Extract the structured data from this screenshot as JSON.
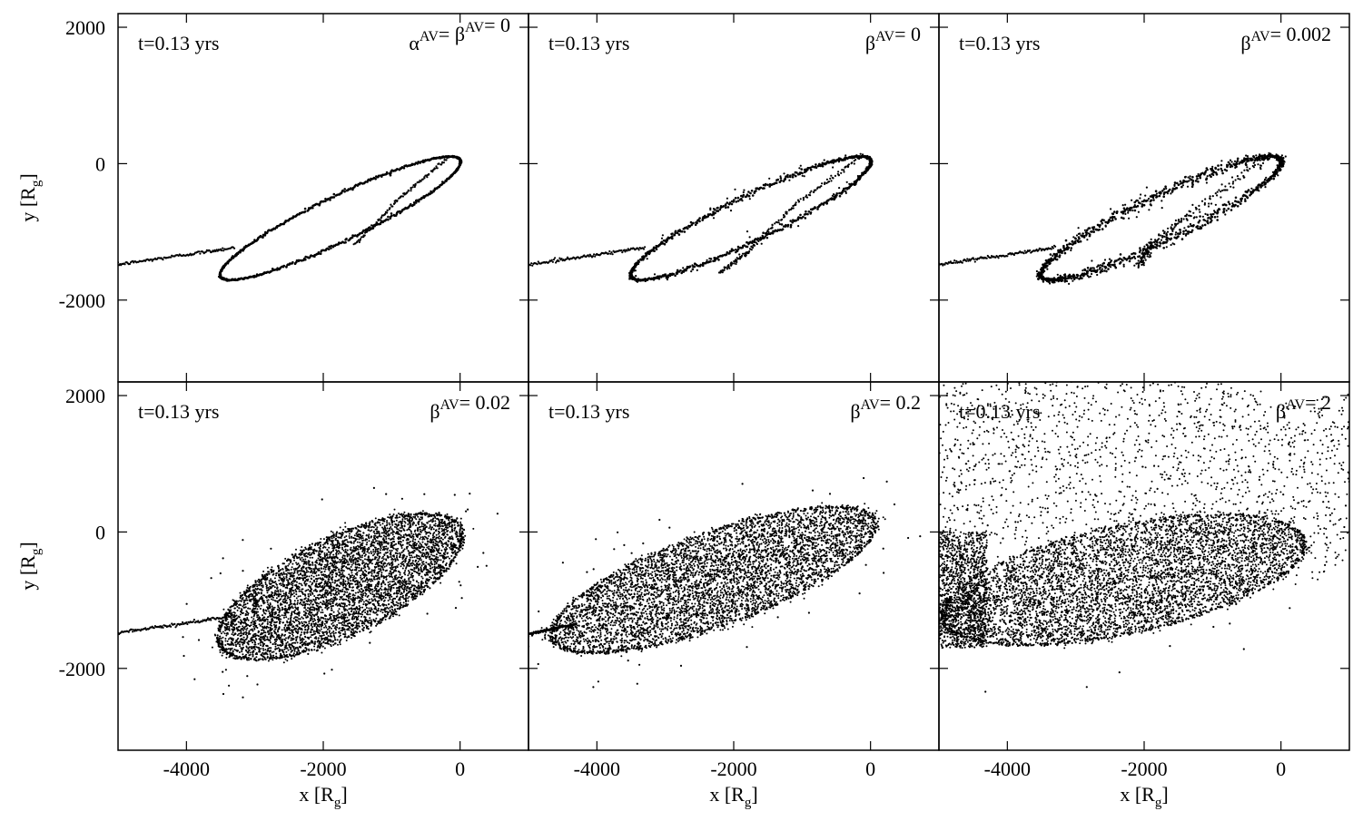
{
  "figure": {
    "xlabel": "x [R",
    "xlabel_sub": "g",
    "xlabel_close": "]",
    "ylabel": "y [R",
    "ylabel_sub": "g",
    "ylabel_close": "]"
  },
  "chart_data": [
    {
      "type": "scatter",
      "label_time": "t=0.13 yrs",
      "label_param_parts": [
        {
          "base": "α",
          "sup": "AV"
        },
        {
          "base": "= β",
          "sup": "AV"
        },
        {
          "base": "= 0",
          "sup": ""
        }
      ],
      "xlim": [
        -5000,
        1000
      ],
      "ylim": [
        -3200,
        2200
      ],
      "xticks": [
        -4000,
        -2000,
        0
      ],
      "yticks": [
        2000,
        0,
        -2000
      ],
      "xticklabels": [
        "",
        "",
        ""
      ],
      "yticklabels": [
        "2000",
        "0",
        "-2000"
      ],
      "stream_tail": {
        "x": [
          -5000,
          -3300
        ],
        "y": [
          -1480,
          -1230
        ]
      },
      "orbit": {
        "center": [
          -1750,
          -800
        ],
        "semi_major": 1950,
        "semi_minor": 330,
        "angle_deg": 26
      },
      "spread": 0.0,
      "scatter_up": 0,
      "crossing_stream": [
        [
          -180,
          80
        ],
        [
          -900,
          -520
        ],
        [
          -1550,
          -1200
        ]
      ]
    },
    {
      "type": "scatter",
      "label_time": "t=0.13 yrs",
      "label_param_parts": [
        {
          "base": "β",
          "sup": "AV"
        },
        {
          "base": "= 0",
          "sup": ""
        }
      ],
      "xlim": [
        -5000,
        1000
      ],
      "ylim": [
        -3200,
        2200
      ],
      "xticks": [
        -4000,
        -2000,
        0
      ],
      "yticks": [
        2000,
        0,
        -2000
      ],
      "xticklabels": [
        "",
        "",
        ""
      ],
      "yticklabels": [
        "",
        "",
        ""
      ],
      "stream_tail": {
        "x": [
          -5000,
          -3300
        ],
        "y": [
          -1480,
          -1230
        ]
      },
      "orbit": {
        "center": [
          -1750,
          -800
        ],
        "semi_major": 1950,
        "semi_minor": 330,
        "angle_deg": 26
      },
      "spread": 0.02,
      "scatter_up": 0,
      "crossing_stream": [
        [
          -200,
          60
        ],
        [
          -1100,
          -600
        ],
        [
          -1800,
          -1300
        ],
        [
          -2200,
          -1600
        ]
      ]
    },
    {
      "type": "scatter",
      "label_time": "t=0.13 yrs",
      "label_param_parts": [
        {
          "base": "β",
          "sup": "AV"
        },
        {
          "base": "= 0.002",
          "sup": ""
        }
      ],
      "xlim": [
        -5000,
        1000
      ],
      "ylim": [
        -3200,
        2200
      ],
      "xticks": [
        -4000,
        -2000,
        0
      ],
      "yticks": [
        2000,
        0,
        -2000
      ],
      "xticklabels": [
        "",
        "",
        ""
      ],
      "yticklabels": [
        "",
        "",
        ""
      ],
      "stream_tail": {
        "x": [
          -5000,
          -3300
        ],
        "y": [
          -1480,
          -1230
        ]
      },
      "orbit": {
        "center": [
          -1750,
          -800
        ],
        "semi_major": 1950,
        "semi_minor": 330,
        "angle_deg": 26
      },
      "spread": 0.07,
      "scatter_up": 0,
      "crossing_stream": [
        [
          -250,
          40
        ],
        [
          -1300,
          -700
        ],
        [
          -1900,
          -1200
        ],
        [
          -2100,
          -1500
        ]
      ]
    },
    {
      "type": "scatter",
      "label_time": "t=0.13 yrs",
      "label_param_parts": [
        {
          "base": "β",
          "sup": "AV"
        },
        {
          "base": "= 0.02",
          "sup": ""
        }
      ],
      "xlim": [
        -5000,
        1000
      ],
      "ylim": [
        -3200,
        2200
      ],
      "xticks": [
        -4000,
        -2000,
        0
      ],
      "yticks": [
        2000,
        0,
        -2000
      ],
      "xticklabels": [
        "-4000",
        "-2000",
        "0"
      ],
      "yticklabels": [
        "2000",
        "0",
        "-2000"
      ],
      "stream_tail": {
        "x": [
          -5000,
          -3300
        ],
        "y": [
          -1480,
          -1230
        ]
      },
      "orbit": {
        "center": [
          -1750,
          -800
        ],
        "semi_major": 1950,
        "semi_minor": 330,
        "angle_deg": 26
      },
      "spread": 0.55,
      "scatter_up": 0,
      "crossing_stream": []
    },
    {
      "type": "scatter",
      "label_time": "t=0.13 yrs",
      "label_param_parts": [
        {
          "base": "β",
          "sup": "AV"
        },
        {
          "base": "= 0.2",
          "sup": ""
        }
      ],
      "xlim": [
        -5000,
        1000
      ],
      "ylim": [
        -3200,
        2200
      ],
      "xticks": [
        -4000,
        -2000,
        0
      ],
      "yticks": [
        2000,
        0,
        -2000
      ],
      "xticklabels": [
        "-4000",
        "-2000",
        "0"
      ],
      "yticklabels": [
        "",
        "",
        ""
      ],
      "stream_tail": {
        "x": [
          -5000,
          -4300
        ],
        "y": [
          -1500,
          -1350
        ]
      },
      "orbit": {
        "center": [
          -2300,
          -700
        ],
        "semi_major": 2500,
        "semi_minor": 300,
        "angle_deg": 20
      },
      "spread": 0.65,
      "scatter_up": 0,
      "crossing_stream": []
    },
    {
      "type": "scatter",
      "label_time": "t=0.13 yrs",
      "label_param_parts": [
        {
          "base": "β",
          "sup": "AV"
        },
        {
          "base": "= 2",
          "sup": ""
        }
      ],
      "xlim": [
        -5000,
        1000
      ],
      "ylim": [
        -3200,
        2200
      ],
      "xticks": [
        -4000,
        -2000,
        0
      ],
      "yticks": [
        2000,
        0,
        -2000
      ],
      "xticklabels": [
        "-4000",
        "-2000",
        "0"
      ],
      "yticklabels": [
        "",
        "",
        ""
      ],
      "stream_tail": {
        "x": [
          -5000,
          -5000
        ],
        "y": [
          -1300,
          -1300
        ]
      },
      "orbit": {
        "center": [
          -2300,
          -700
        ],
        "semi_major": 2700,
        "semi_minor": 320,
        "angle_deg": 12
      },
      "spread": 0.85,
      "scatter_up": 1,
      "crossing_stream": []
    }
  ]
}
